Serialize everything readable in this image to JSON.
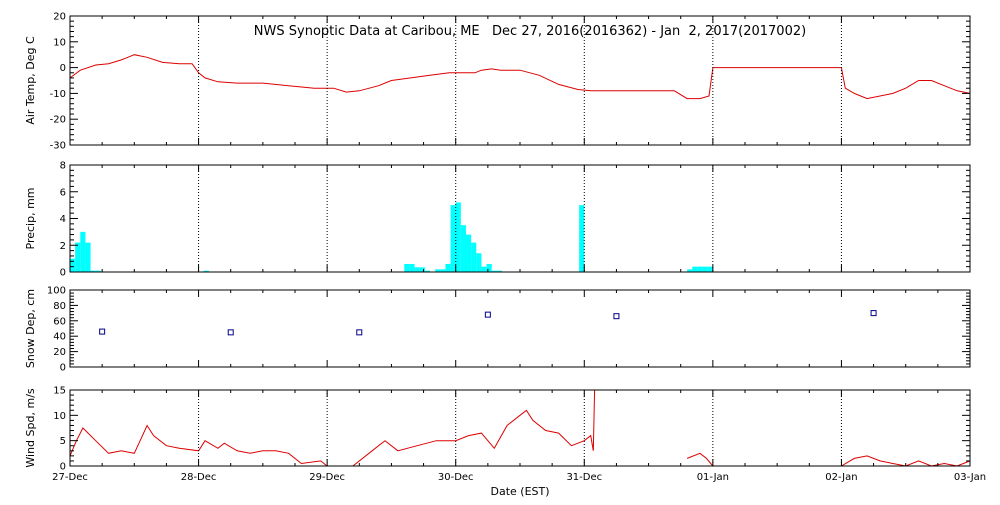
{
  "title": "NWS Synoptic Data at Caribou, ME   Dec 27, 2016(2016362) - Jan  2, 2017(2017002)",
  "x_axis": {
    "label": "Date (EST)",
    "ticks": [
      "27-Dec",
      "28-Dec",
      "29-Dec",
      "30-Dec",
      "31-Dec",
      "01-Jan",
      "02-Jan",
      "03-Jan"
    ],
    "range_days": [
      0,
      7
    ]
  },
  "colors": {
    "line": "#dd0000",
    "bar": "#00ffff",
    "marker": "#00008b",
    "axes": "#000000",
    "grid": "#000000"
  },
  "chart_data": [
    {
      "id": "air-temp",
      "type": "line",
      "ylabel": "Air Temp, Deg C",
      "ylim": [
        -30,
        20
      ],
      "yticks": [
        -30,
        -20,
        -10,
        0,
        10,
        20
      ],
      "vertical_grid": "dotted",
      "series": [
        {
          "x": [
            0.0,
            0.08,
            0.2,
            0.3,
            0.4,
            0.5,
            0.6,
            0.72,
            0.85,
            0.95,
            1.0,
            1.05,
            1.15,
            1.3,
            1.5,
            1.7,
            1.9,
            2.05,
            2.15,
            2.25,
            2.4,
            2.5,
            2.65,
            2.8,
            2.95,
            3.05,
            3.15,
            3.2,
            3.28,
            3.35,
            3.5,
            3.65,
            3.8,
            3.95,
            4.05,
            4.2,
            4.4,
            4.7,
            4.8,
            4.9,
            4.97,
            5.0,
            5.5,
            6.0,
            6.03,
            6.1,
            6.2,
            6.3,
            6.4,
            6.5,
            6.6,
            6.7,
            6.8,
            6.9,
            7.0
          ],
          "y": [
            -4,
            -1,
            1,
            1.5,
            3,
            5,
            4,
            2,
            1.5,
            1.5,
            -2,
            -4,
            -5.5,
            -6,
            -6,
            -7,
            -8,
            -8,
            -9.5,
            -9,
            -7,
            -5,
            -4,
            -3,
            -2,
            -2,
            -2,
            -1,
            -0.5,
            -1,
            -1,
            -3,
            -6.5,
            -8.5,
            -9,
            -9,
            -9,
            -9,
            -12,
            -12,
            -11,
            0,
            0,
            0,
            -8,
            -10,
            -12,
            -11,
            -10,
            -8,
            -5,
            -5,
            -7,
            -9,
            -10
          ]
        }
      ]
    },
    {
      "id": "precip",
      "type": "bar",
      "ylabel": "Precip, mm",
      "ylim": [
        0,
        8
      ],
      "yticks": [
        0,
        2,
        4,
        6,
        8
      ],
      "vertical_grid": "dotted",
      "bar_width_days": 0.04,
      "series": [
        {
          "x": [
            0.0,
            0.04,
            0.08,
            0.12,
            0.16,
            0.2,
            1.04,
            2.6,
            2.64,
            2.68,
            2.72,
            2.76,
            2.84,
            2.88,
            2.92,
            2.96,
            3.0,
            3.04,
            3.08,
            3.12,
            3.16,
            3.2,
            3.24,
            3.28,
            3.32,
            3.96,
            4.8,
            4.84,
            4.88,
            4.92,
            4.96
          ],
          "y": [
            1.0,
            2.2,
            3.0,
            2.2,
            0.1,
            0.1,
            0.1,
            0.6,
            0.6,
            0.35,
            0.35,
            0.1,
            0.2,
            0.2,
            0.6,
            5.0,
            5.2,
            3.5,
            2.8,
            2.2,
            1.4,
            0.4,
            0.6,
            0.1,
            0.1,
            5.0,
            0.2,
            0.4,
            0.4,
            0.4,
            0.4
          ]
        }
      ]
    },
    {
      "id": "snow-depth",
      "type": "scatter",
      "ylabel": "Snow Dep, cm",
      "ylim": [
        0,
        100
      ],
      "yticks": [
        0,
        20,
        40,
        60,
        80,
        100
      ],
      "vertical_grid": "none",
      "series": [
        {
          "x": [
            0.25,
            1.25,
            2.25,
            3.25,
            4.25,
            6.25
          ],
          "y": [
            46,
            45,
            45,
            68,
            66,
            70
          ]
        }
      ]
    },
    {
      "id": "wind-speed",
      "type": "line",
      "ylabel": "Wind Spd, m/s",
      "ylim": [
        0,
        15
      ],
      "yticks": [
        0,
        5,
        10,
        15
      ],
      "vertical_grid": "dotted",
      "series": [
        {
          "x": [
            0.0,
            0.05,
            0.1,
            0.2,
            0.3,
            0.4,
            0.5,
            0.6,
            0.65,
            0.75,
            0.85,
            1.0,
            1.05,
            1.15,
            1.2,
            1.3,
            1.4,
            1.5,
            1.6,
            1.7,
            1.8,
            1.95,
            2.0,
            2.2,
            2.35,
            2.45,
            2.55,
            2.7,
            2.85,
            3.0,
            3.1,
            3.2,
            3.3,
            3.4,
            3.5,
            3.55,
            3.6,
            3.7,
            3.8,
            3.9,
            4.0,
            4.05,
            4.07,
            4.08
          ],
          "y": [
            2,
            5,
            7.5,
            5,
            2.5,
            3,
            2.5,
            8,
            6,
            4,
            3.5,
            3,
            5,
            3.5,
            4.5,
            3,
            2.5,
            3,
            3,
            2.5,
            0.5,
            1,
            0,
            0,
            3,
            5,
            3,
            4,
            5,
            5,
            6,
            6.5,
            3.5,
            8,
            10,
            11,
            9,
            7,
            6.5,
            4,
            5,
            6,
            3,
            15
          ]
        },
        {
          "x": [
            4.8,
            4.9,
            4.95,
            5.0
          ],
          "y": [
            1.5,
            2.5,
            1.5,
            0
          ]
        },
        {
          "x": [
            6.0,
            6.1,
            6.2,
            6.3,
            6.4,
            6.5,
            6.6,
            6.7,
            6.8,
            6.9,
            7.0
          ],
          "y": [
            0,
            1.5,
            2,
            1,
            0.5,
            0,
            1,
            0,
            0.5,
            0,
            1
          ]
        }
      ]
    }
  ]
}
